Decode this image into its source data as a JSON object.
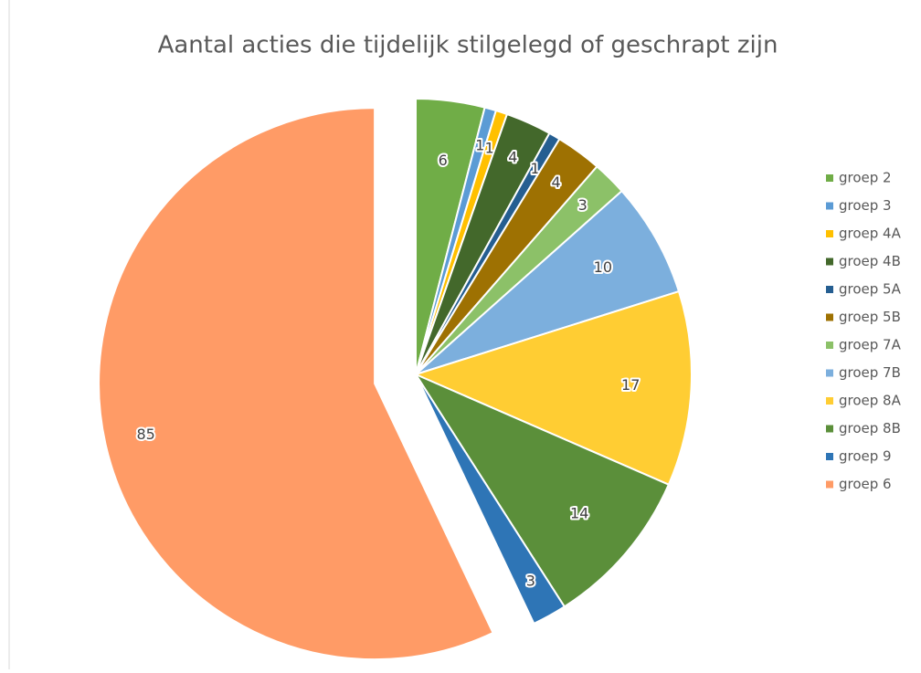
{
  "chart_data": {
    "type": "pie",
    "title": "Aantal acties die tijdelijk stilgelegd of geschrapt zijn",
    "categories": [
      "groep 2",
      "groep 3",
      "groep 4A",
      "groep 4B",
      "groep 5A",
      "groep 5B",
      "groep 7A",
      "groep 7B",
      "groep 8A",
      "groep 8B",
      "groep 9",
      "groep 6"
    ],
    "values": [
      6,
      1,
      1,
      4,
      1,
      4,
      3,
      10,
      17,
      14,
      3,
      85
    ],
    "colors": [
      "#70ad47",
      "#5b9bd5",
      "#ffc000",
      "#43682b",
      "#255e91",
      "#9e7102",
      "#8cc168",
      "#7cafdd",
      "#ffcd33",
      "#5b8f3a",
      "#2e75b6",
      "#ff9b66"
    ],
    "legend": "right"
  }
}
